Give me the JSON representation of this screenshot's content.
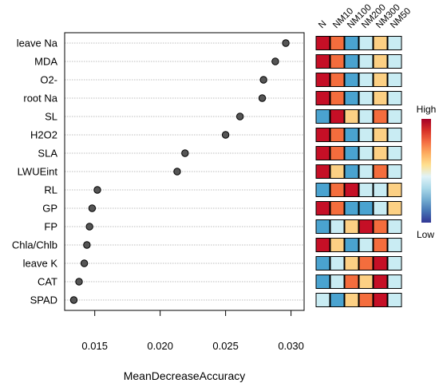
{
  "chart_data": {
    "type": "scatter",
    "xlabel": "MeanDecreaseAccuracy",
    "ylabel": "",
    "xlim": [
      0.0127,
      0.031
    ],
    "x_ticks": [
      0.015,
      0.02,
      0.025,
      0.03
    ],
    "x_tick_labels": [
      "0.015",
      "0.020",
      "0.025",
      "0.030"
    ],
    "grid": "horizontal dotted lines",
    "categories": [
      "leave Na",
      "MDA",
      "O2-",
      "root Na",
      "SL",
      "H2O2",
      "SLA",
      "LWUEint",
      "RL",
      "GP",
      "FP",
      "Chla/Chlb",
      "leave K",
      "CAT",
      "SPAD"
    ],
    "values": [
      0.0296,
      0.0288,
      0.0279,
      0.0278,
      0.0261,
      0.025,
      0.0219,
      0.0213,
      0.0152,
      0.0148,
      0.0146,
      0.0144,
      0.0142,
      0.0138,
      0.0134
    ],
    "point_color": "#555555",
    "heatmap": {
      "columns": [
        "N",
        "NM10",
        "NM100",
        "NM200",
        "NM300",
        "NM50"
      ],
      "levels": [
        [
          5,
          4,
          1,
          2,
          3,
          2
        ],
        [
          5,
          4,
          1,
          2,
          3,
          2
        ],
        [
          5,
          4,
          1,
          2,
          3,
          2
        ],
        [
          5,
          4,
          1,
          2,
          3,
          2
        ],
        [
          1,
          5,
          3,
          2,
          4,
          2
        ],
        [
          5,
          4,
          1,
          2,
          3,
          2
        ],
        [
          5,
          4,
          1,
          2,
          3,
          2
        ],
        [
          5,
          3,
          1,
          2,
          4,
          2
        ],
        [
          1,
          4,
          5,
          2,
          2,
          3
        ],
        [
          5,
          4,
          1,
          1,
          2,
          3
        ],
        [
          1,
          2,
          3,
          5,
          4,
          2
        ],
        [
          5,
          3,
          1,
          2,
          4,
          2
        ],
        [
          1,
          2,
          3,
          4,
          5,
          2
        ],
        [
          1,
          2,
          4,
          3,
          5,
          2
        ],
        [
          2,
          1,
          3,
          4,
          5,
          2
        ]
      ],
      "palette": [
        "#2c3a96",
        "#4aa3d0",
        "#c9ecf3",
        "#fcd084",
        "#f46d3d",
        "#c50f26"
      ],
      "legend_high": "High",
      "legend_low": "Low",
      "legend_gradient": [
        "#a50026",
        "#d73027",
        "#f46d43",
        "#fdae61",
        "#fee090",
        "#e0f3f8",
        "#abd9e9",
        "#74add1",
        "#4575b4",
        "#313695"
      ]
    }
  }
}
